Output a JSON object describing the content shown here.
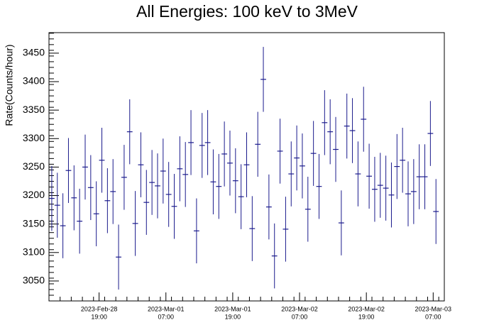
{
  "chart_data": {
    "type": "errorbar",
    "title": "All Energies:  100 keV to 3MeV",
    "y_label": "Rate(Counts/hour)",
    "color": "#1a1a8c",
    "x": [
      "2023-02-28T10:30",
      "2023-02-28T11:30",
      "2023-02-28T12:30",
      "2023-02-28T13:30",
      "2023-02-28T14:30",
      "2023-02-28T15:30",
      "2023-02-28T16:30",
      "2023-02-28T17:30",
      "2023-02-28T18:30",
      "2023-02-28T19:30",
      "2023-02-28T20:30",
      "2023-02-28T21:30",
      "2023-02-28T22:30",
      "2023-02-28T23:30",
      "2023-03-01T00:30",
      "2023-03-01T01:30",
      "2023-03-01T02:30",
      "2023-03-01T03:30",
      "2023-03-01T04:30",
      "2023-03-01T05:30",
      "2023-03-01T06:30",
      "2023-03-01T07:30",
      "2023-03-01T08:30",
      "2023-03-01T09:30",
      "2023-03-01T10:30",
      "2023-03-01T11:30",
      "2023-03-01T12:30",
      "2023-03-01T13:30",
      "2023-03-01T14:30",
      "2023-03-01T15:30",
      "2023-03-01T16:30",
      "2023-03-01T17:30",
      "2023-03-01T18:30",
      "2023-03-01T19:30",
      "2023-03-01T20:30",
      "2023-03-01T21:30",
      "2023-03-01T22:30",
      "2023-03-01T23:30",
      "2023-03-02T00:30",
      "2023-03-02T01:30",
      "2023-03-02T02:30",
      "2023-03-02T03:30",
      "2023-03-02T04:30",
      "2023-03-02T05:30",
      "2023-03-02T06:30",
      "2023-03-02T07:30",
      "2023-03-02T08:30",
      "2023-03-02T09:30",
      "2023-03-02T10:30",
      "2023-03-02T11:30",
      "2023-03-02T12:30",
      "2023-03-02T13:30",
      "2023-03-02T14:30",
      "2023-03-02T15:30",
      "2023-03-02T16:30",
      "2023-03-02T17:30",
      "2023-03-02T18:30",
      "2023-03-02T19:30",
      "2023-03-02T20:30",
      "2023-03-02T21:30",
      "2023-03-02T22:30",
      "2023-03-02T23:30",
      "2023-03-03T00:30",
      "2023-03-03T01:30",
      "2023-03-03T02:30",
      "2023-03-03T03:30",
      "2023-03-03T04:30",
      "2023-03-03T05:30",
      "2023-03-03T06:30",
      "2023-03-03T07:30"
    ],
    "values": [
      3195,
      3183,
      3147,
      3244,
      3196,
      3155,
      3250,
      3214,
      3168,
      3262,
      3191,
      3207,
      3092,
      3232,
      3312,
      3151,
      3254,
      3188,
      3223,
      3217,
      3243,
      3202,
      3181,
      3247,
      3237,
      3293,
      3138,
      3288,
      3293,
      3224,
      3216,
      3273,
      3257,
      3226,
      3198,
      3254,
      3142,
      3290,
      3404,
      3180,
      3094,
      3278,
      3141,
      3238,
      3266,
      3252,
      3176,
      3274,
      3216,
      3328,
      3312,
      3281,
      3152,
      3322,
      3314,
      3238,
      3334,
      3234,
      3211,
      3218,
      3213,
      3201,
      3251,
      3262,
      3203,
      3207,
      3233,
      3233,
      3309,
      3172
    ],
    "errors": [
      57,
      57,
      57,
      57,
      57,
      57,
      57,
      57,
      57,
      57,
      57,
      57,
      57,
      57,
      57,
      57,
      57,
      57,
      57,
      57,
      57,
      57,
      57,
      57,
      57,
      57,
      57,
      57,
      57,
      57,
      57,
      57,
      57,
      57,
      57,
      57,
      57,
      57,
      57,
      57,
      57,
      57,
      57,
      57,
      57,
      57,
      57,
      57,
      57,
      57,
      57,
      57,
      57,
      57,
      57,
      57,
      57,
      57,
      57,
      57,
      57,
      57,
      57,
      57,
      57,
      57,
      57,
      57,
      57,
      57
    ],
    "xlim": [
      "2023-02-28T10:00",
      "2023-03-03T09:00"
    ],
    "xticks": [
      {
        "value": "2023-02-28T19:00",
        "label": [
          "2023-Feb-28",
          "19:00"
        ]
      },
      {
        "value": "2023-03-01T07:00",
        "label": [
          "2023-Mar-01",
          "07:00"
        ]
      },
      {
        "value": "2023-03-01T19:00",
        "label": [
          "2023-Mar-01",
          "19:00"
        ]
      },
      {
        "value": "2023-03-02T07:00",
        "label": [
          "2023-Mar-02",
          "07:00"
        ]
      },
      {
        "value": "2023-03-02T19:00",
        "label": [
          "2023-Mar-02",
          "19:00"
        ]
      },
      {
        "value": "2023-03-03T07:00",
        "label": [
          "2023-Mar-03",
          "07:00"
        ]
      }
    ],
    "ylim": [
      3015,
      3486
    ],
    "yticks": [
      3050,
      3100,
      3150,
      3200,
      3250,
      3300,
      3350,
      3400,
      3450
    ]
  }
}
